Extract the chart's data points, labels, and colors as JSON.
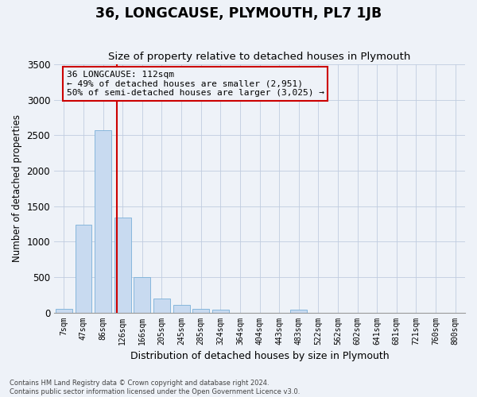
{
  "title": "36, LONGCAUSE, PLYMOUTH, PL7 1JB",
  "subtitle": "Size of property relative to detached houses in Plymouth",
  "xlabel": "Distribution of detached houses by size in Plymouth",
  "ylabel": "Number of detached properties",
  "categories": [
    "7sqm",
    "47sqm",
    "86sqm",
    "126sqm",
    "166sqm",
    "205sqm",
    "245sqm",
    "285sqm",
    "324sqm",
    "364sqm",
    "404sqm",
    "443sqm",
    "483sqm",
    "522sqm",
    "562sqm",
    "602sqm",
    "641sqm",
    "681sqm",
    "721sqm",
    "760sqm",
    "800sqm"
  ],
  "bar_values": [
    50,
    1240,
    2570,
    1340,
    500,
    200,
    110,
    50,
    40,
    0,
    0,
    0,
    40,
    0,
    0,
    0,
    0,
    0,
    0,
    0,
    0
  ],
  "bar_color": "#c8daf0",
  "bar_edge_color": "#7ab0d8",
  "ylim": [
    0,
    3500
  ],
  "yticks": [
    0,
    500,
    1000,
    1500,
    2000,
    2500,
    3000,
    3500
  ],
  "property_line_x": 2.72,
  "property_line_color": "#cc0000",
  "annotation_title": "36 LONGCAUSE: 112sqm",
  "annotation_line1": "← 49% of detached houses are smaller (2,951)",
  "annotation_line2": "50% of semi-detached houses are larger (3,025) →",
  "annotation_box_color": "#cc0000",
  "footer_line1": "Contains HM Land Registry data © Crown copyright and database right 2024.",
  "footer_line2": "Contains public sector information licensed under the Open Government Licence v3.0.",
  "background_color": "#eef2f8",
  "grid_color": "#c0cce0"
}
